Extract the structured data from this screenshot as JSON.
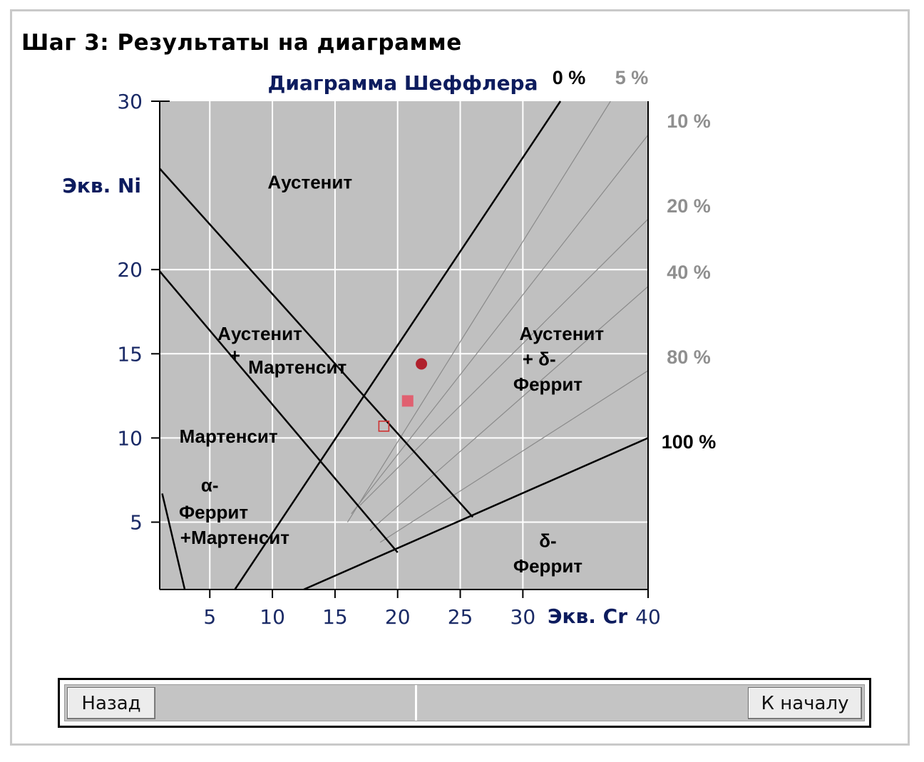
{
  "page": {
    "step_title": "Шаг 3: Результаты на диаграмме"
  },
  "navigation": {
    "back_label": "Назад",
    "home_label": "К началу"
  },
  "colors": {
    "plot_background": "#c0c0c0",
    "grid": "#ffffff",
    "axis_text": "#1a2a66",
    "title_text": "#0d1c5e",
    "iso_line_gray": "#8a8a8a",
    "iso_label_gray": "#8f8f8f",
    "marker_circle": "#b0202c",
    "marker_square": "#e06070",
    "marker_open_square": "#d03030"
  },
  "chart_data": {
    "type": "scatter",
    "title": "Диаграмма Шеффлера",
    "xlabel": "Экв. Cr",
    "ylabel": "Экв. Ni",
    "xlim": [
      1,
      40
    ],
    "ylim": [
      1,
      30
    ],
    "x_ticks": [
      5,
      10,
      15,
      20,
      25,
      30,
      40
    ],
    "y_ticks": [
      5,
      10,
      15,
      20,
      30
    ],
    "grid": true,
    "points": [
      {
        "x": 21.9,
        "y": 14.4,
        "marker": "filled-circle"
      },
      {
        "x": 20.8,
        "y": 12.2,
        "marker": "filled-square"
      },
      {
        "x": 18.9,
        "y": 10.7,
        "marker": "open-square"
      }
    ],
    "region_labels": [
      {
        "text": "Аустенит",
        "x": 13.0,
        "y": 25.2
      },
      {
        "text": "Аустенит",
        "x": 9.0,
        "y": 16.2
      },
      {
        "text": "+",
        "x": 7.0,
        "y": 14.9
      },
      {
        "text": "Мартенсит",
        "x": 12.0,
        "y": 14.2
      },
      {
        "text": "Мартенсит",
        "x": 6.5,
        "y": 10.1
      },
      {
        "text": "α-",
        "x": 5.0,
        "y": 7.2
      },
      {
        "text": "Феррит",
        "x": 5.3,
        "y": 5.6
      },
      {
        "text": "+Мартенсит",
        "x": 7.0,
        "y": 4.1
      },
      {
        "text": "Аустенит",
        "x": 33.1,
        "y": 16.2
      },
      {
        "text": "+ δ-",
        "x": 31.3,
        "y": 14.7
      },
      {
        "text": "Феррит",
        "x": 32.0,
        "y": 13.2
      },
      {
        "text": "δ-",
        "x": 32.0,
        "y": 3.9
      },
      {
        "text": "Феррит",
        "x": 32.0,
        "y": 2.4
      }
    ],
    "ferrite_lines": [
      {
        "label": "0 %",
        "from": [
          7.0,
          1.0
        ],
        "to": [
          33.0,
          30.0
        ]
      },
      {
        "label": "5 %",
        "from": [
          16.0,
          5.0
        ],
        "to": [
          37.0,
          30.0
        ]
      },
      {
        "label": "10 %",
        "from": [
          16.3,
          5.5
        ],
        "to": [
          40.0,
          28.0
        ]
      },
      {
        "label": "20 %",
        "from": [
          17.0,
          6.0
        ],
        "to": [
          40.0,
          23.0
        ]
      },
      {
        "label": "40 %",
        "from": [
          17.8,
          4.5
        ],
        "to": [
          40.0,
          19.0
        ]
      },
      {
        "label": "80 %",
        "from": [
          18.6,
          3.8
        ],
        "to": [
          40.0,
          14.0
        ]
      },
      {
        "label": "100 %",
        "from": [
          12.5,
          1.0
        ],
        "to": [
          40.0,
          10.0
        ]
      }
    ],
    "boundary_lines": [
      {
        "from": [
          1.0,
          26.0
        ],
        "to": [
          26.0,
          5.3
        ]
      },
      {
        "from": [
          1.0,
          19.9
        ],
        "to": [
          20.0,
          3.2
        ]
      },
      {
        "from": [
          1.2,
          6.7
        ],
        "to": [
          3.0,
          1.0
        ]
      }
    ]
  }
}
